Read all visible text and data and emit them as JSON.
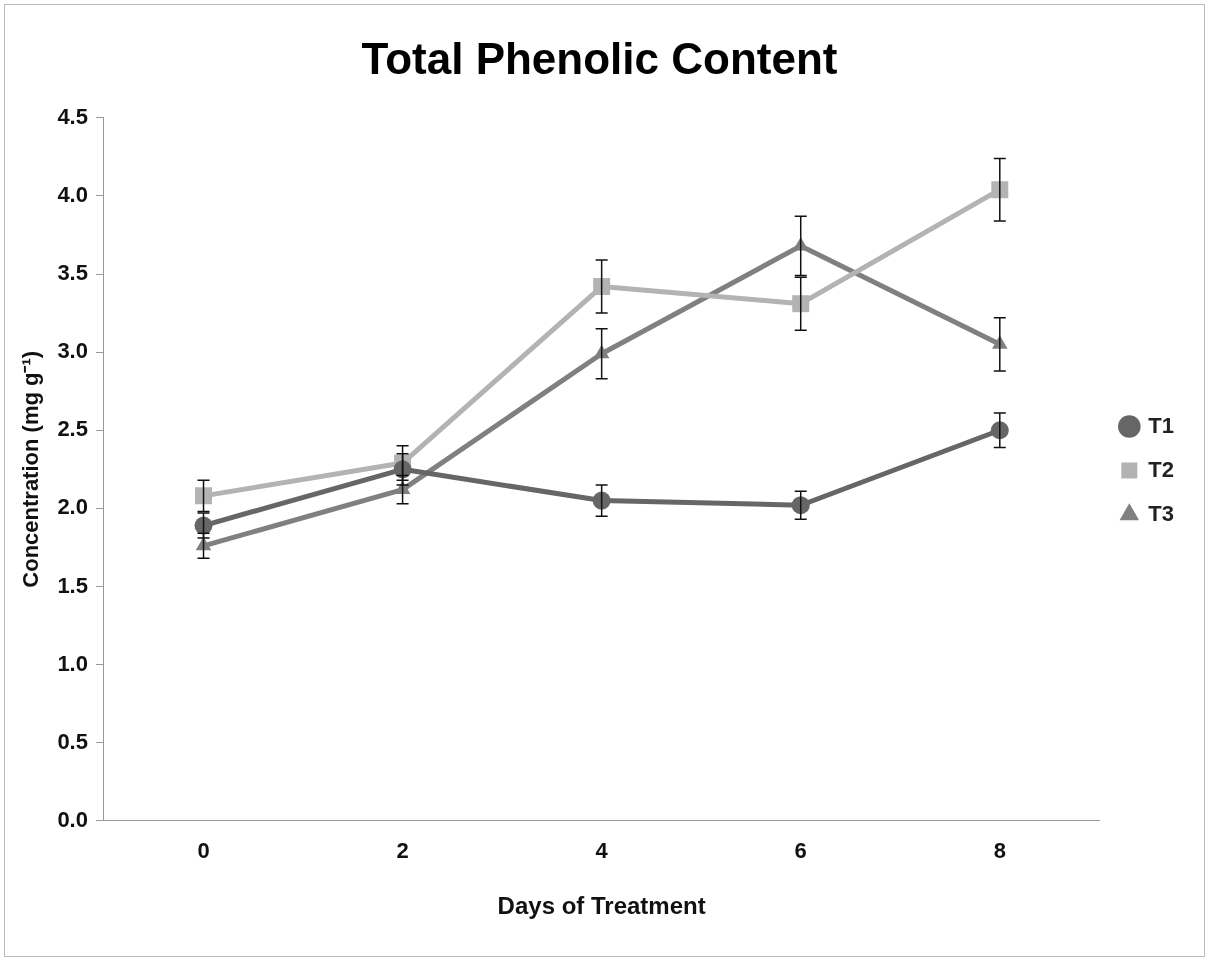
{
  "chart_data": {
    "type": "line",
    "title": "Total Phenolic Content",
    "xlabel": "Days of Treatment",
    "ylabel": "Concentration (mg g⁻¹)",
    "categories": [
      "0",
      "2",
      "4",
      "6",
      "8"
    ],
    "series": [
      {
        "name": "T1",
        "color": "#666666",
        "marker": "circle",
        "values": [
          1.89,
          2.25,
          2.05,
          2.02,
          2.5
        ],
        "errors": [
          0.08,
          0.1,
          0.1,
          0.09,
          0.11
        ]
      },
      {
        "name": "T2",
        "color": "#b3b3b3",
        "marker": "square",
        "values": [
          2.08,
          2.29,
          3.42,
          3.31,
          4.04
        ],
        "errors": [
          0.1,
          0.11,
          0.17,
          0.17,
          0.2
        ]
      },
      {
        "name": "T3",
        "color": "#808080",
        "marker": "triangle",
        "values": [
          1.76,
          2.12,
          2.99,
          3.68,
          3.05
        ],
        "errors": [
          0.08,
          0.09,
          0.16,
          0.19,
          0.17
        ]
      }
    ],
    "ylim": [
      0,
      4.5
    ],
    "yticks": [
      {
        "value": 0,
        "label": "0.0"
      },
      {
        "value": 0.5,
        "label": "0.5"
      },
      {
        "value": 1,
        "label": "1.0"
      },
      {
        "value": 1.5,
        "label": "1.5"
      },
      {
        "value": 2,
        "label": "2.0"
      },
      {
        "value": 2.5,
        "label": "2.5"
      },
      {
        "value": 3,
        "label": "3.0"
      },
      {
        "value": 3.5,
        "label": "3.5"
      },
      {
        "value": 4,
        "label": "4.0"
      },
      {
        "value": 4.5,
        "label": "4.5"
      }
    ],
    "grid": false,
    "legend": "right"
  }
}
